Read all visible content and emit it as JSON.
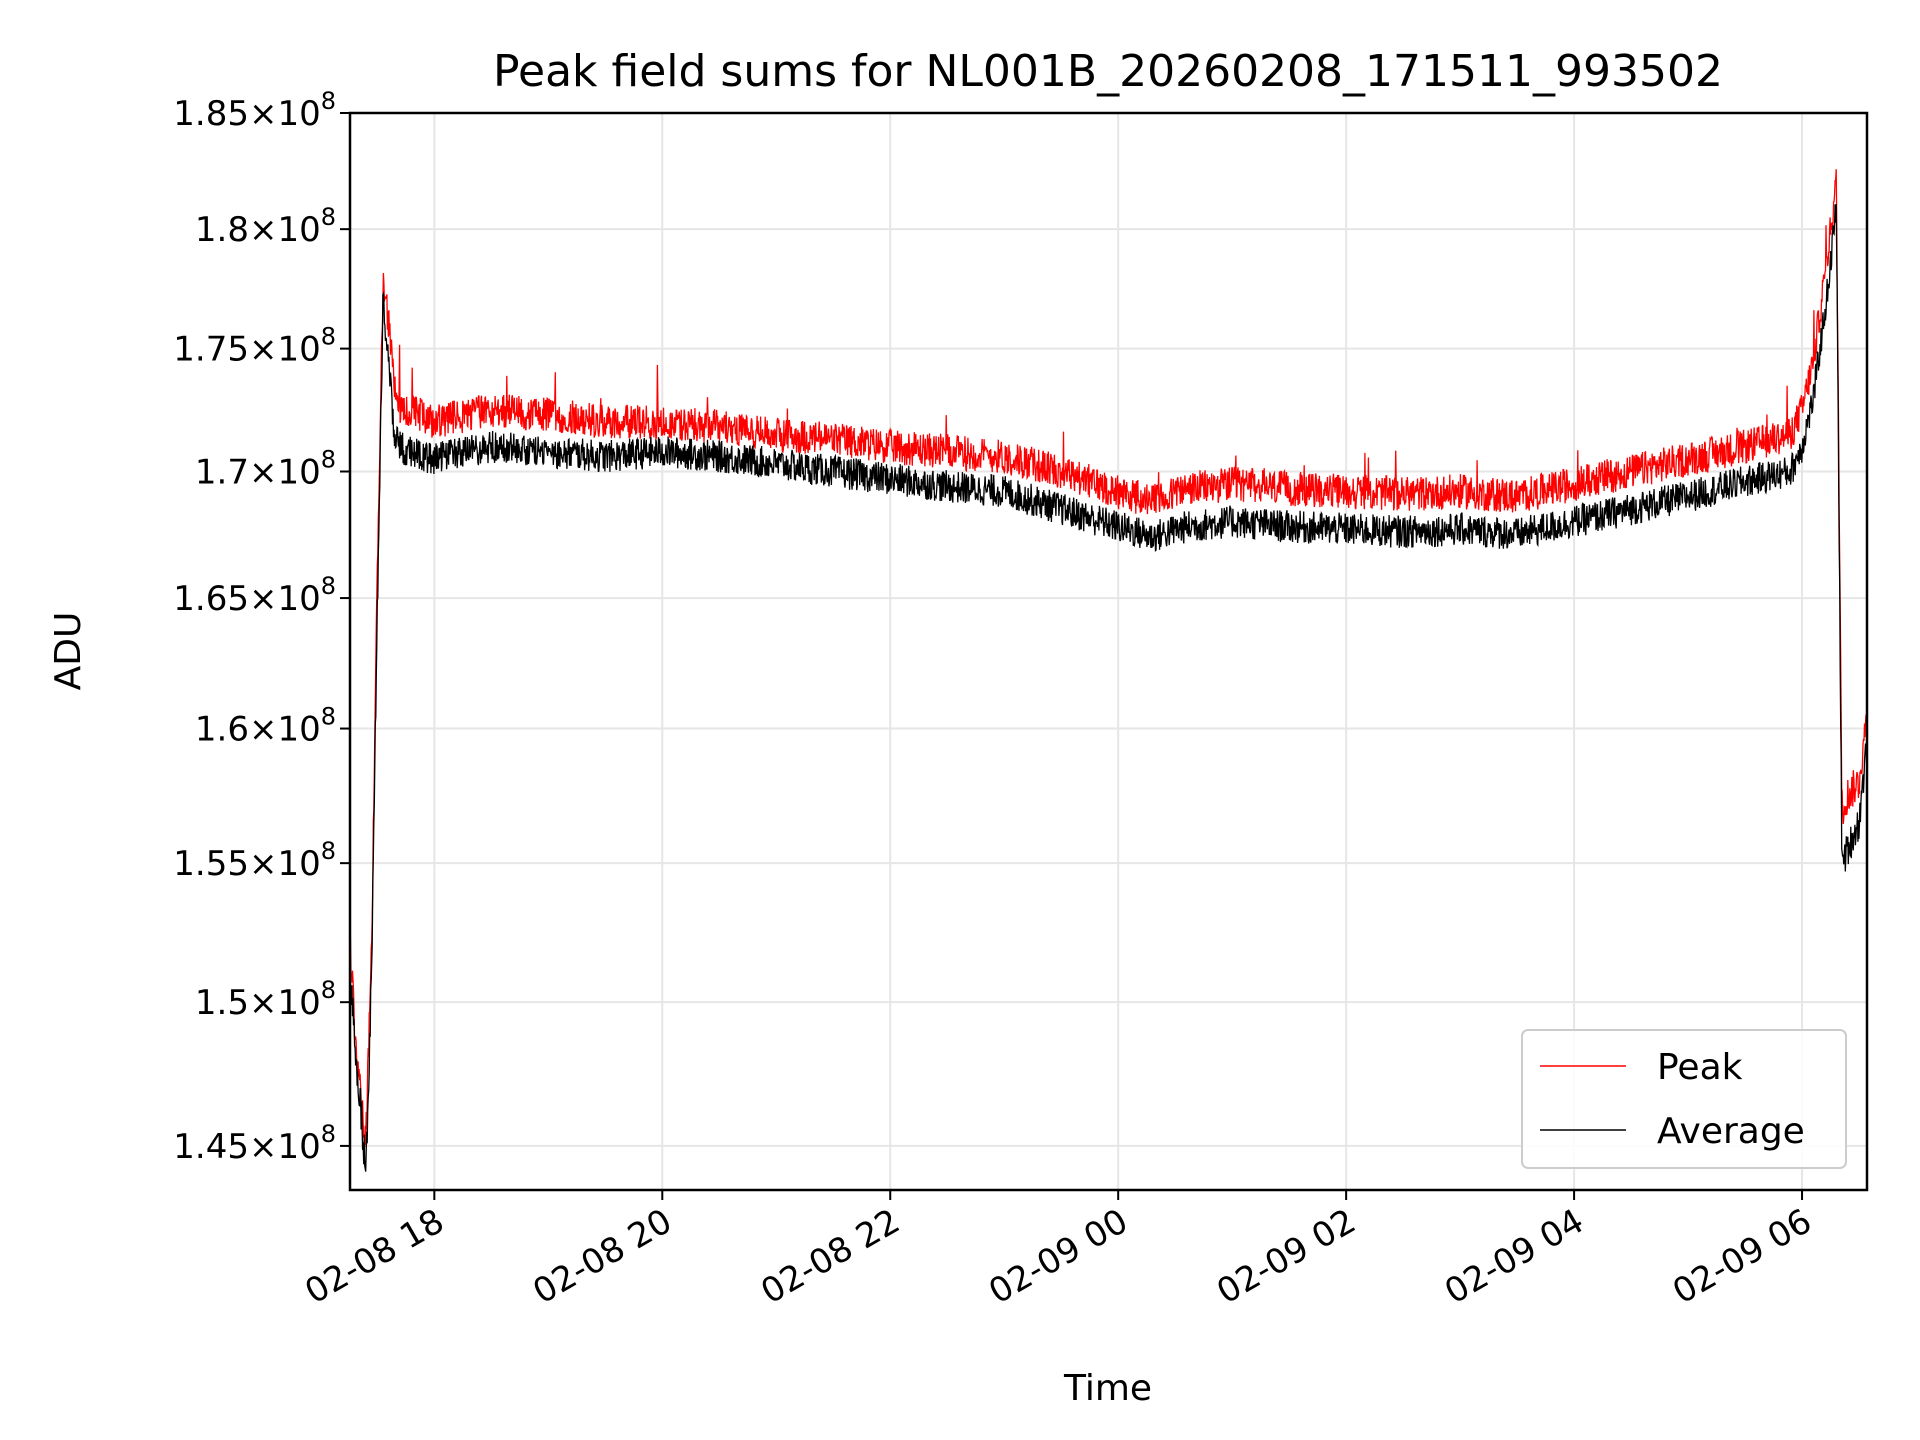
{
  "chart_data": {
    "type": "line",
    "title": "Peak field sums for NL001B_20260208_171511_993502",
    "xlabel": "Time",
    "ylabel": "ADU",
    "x_unit": "hours since 2026-02-08 00:00",
    "xlim": [
      17.26,
      30.57
    ],
    "ylim": [
      143500000,
      185000000
    ],
    "x_ticks": [
      {
        "value": 18,
        "label": "02-08 18"
      },
      {
        "value": 20,
        "label": "02-08 20"
      },
      {
        "value": 22,
        "label": "02-08 22"
      },
      {
        "value": 24,
        "label": "02-09 00"
      },
      {
        "value": 26,
        "label": "02-09 02"
      },
      {
        "value": 28,
        "label": "02-09 04"
      },
      {
        "value": 30,
        "label": "02-09 06"
      }
    ],
    "y_ticks": [
      {
        "value": 145000000,
        "mantissa": "1.45",
        "exponent": "8"
      },
      {
        "value": 150000000,
        "mantissa": "1.5",
        "exponent": "8"
      },
      {
        "value": 155000000,
        "mantissa": "1.55",
        "exponent": "8"
      },
      {
        "value": 160000000,
        "mantissa": "1.6",
        "exponent": "8"
      },
      {
        "value": 165000000,
        "mantissa": "1.65",
        "exponent": "8"
      },
      {
        "value": 170000000,
        "mantissa": "1.7",
        "exponent": "8"
      },
      {
        "value": 175000000,
        "mantissa": "1.75",
        "exponent": "8"
      },
      {
        "value": 180000000,
        "mantissa": "1.8",
        "exponent": "8"
      },
      {
        "value": 185000000,
        "mantissa": "1.85",
        "exponent": "8"
      }
    ],
    "tick_prefix": "×10",
    "y_scale": "log",
    "grid": true,
    "legend_position": "lower-right",
    "series": [
      {
        "name": "Peak",
        "color": "#ff0000",
        "x": [
          17.26,
          17.3,
          17.35,
          17.4,
          17.45,
          17.5,
          17.55,
          17.6,
          17.65,
          17.7,
          17.75,
          17.8,
          17.9,
          18.0,
          18.5,
          19.0,
          19.5,
          20.0,
          20.5,
          21.0,
          21.5,
          22.0,
          22.5,
          23.0,
          23.5,
          24.0,
          24.3,
          24.6,
          25.0,
          25.5,
          26.0,
          26.5,
          27.0,
          27.5,
          28.0,
          28.5,
          29.0,
          29.5,
          29.9,
          30.0,
          30.1,
          30.2,
          30.25,
          30.3,
          30.35,
          30.4,
          30.5,
          30.57
        ],
        "values": [
          152500000,
          149000000,
          147000000,
          145000000,
          152000000,
          166000000,
          178000000,
          176000000,
          173500000,
          172500000,
          172500000,
          172500000,
          172200000,
          172000000,
          172500000,
          172300000,
          172000000,
          172000000,
          171800000,
          171500000,
          171300000,
          171000000,
          170800000,
          170600000,
          170000000,
          169200000,
          168800000,
          169300000,
          169500000,
          169300000,
          169200000,
          169100000,
          169200000,
          169000000,
          169500000,
          170000000,
          170500000,
          171000000,
          171500000,
          172500000,
          174500000,
          178000000,
          180000000,
          182000000,
          157000000,
          157500000,
          158000000,
          160500000
        ]
      },
      {
        "name": "Average",
        "color": "#000000",
        "x": [
          17.26,
          17.3,
          17.35,
          17.4,
          17.45,
          17.5,
          17.55,
          17.6,
          17.65,
          17.7,
          17.75,
          17.8,
          17.9,
          18.0,
          18.5,
          19.0,
          19.5,
          20.0,
          20.5,
          21.0,
          21.5,
          22.0,
          22.5,
          23.0,
          23.5,
          24.0,
          24.3,
          24.6,
          25.0,
          25.5,
          26.0,
          26.5,
          27.0,
          27.5,
          28.0,
          28.5,
          29.0,
          29.5,
          29.9,
          30.0,
          30.1,
          30.2,
          30.25,
          30.3,
          30.35,
          30.4,
          30.5,
          30.57
        ],
        "values": [
          151500000,
          148500000,
          146500000,
          144000000,
          151000000,
          164500000,
          177000000,
          174500000,
          171500000,
          171000000,
          170800000,
          170800000,
          170600000,
          170500000,
          171000000,
          170800000,
          170600000,
          170800000,
          170600000,
          170300000,
          170000000,
          169700000,
          169400000,
          169200000,
          168500000,
          167800000,
          167400000,
          167800000,
          168000000,
          167800000,
          167700000,
          167600000,
          167700000,
          167500000,
          168000000,
          168500000,
          169000000,
          169600000,
          170000000,
          171000000,
          173000000,
          176500000,
          178500000,
          181000000,
          155000000,
          155500000,
          156500000,
          159500000
        ]
      }
    ]
  }
}
